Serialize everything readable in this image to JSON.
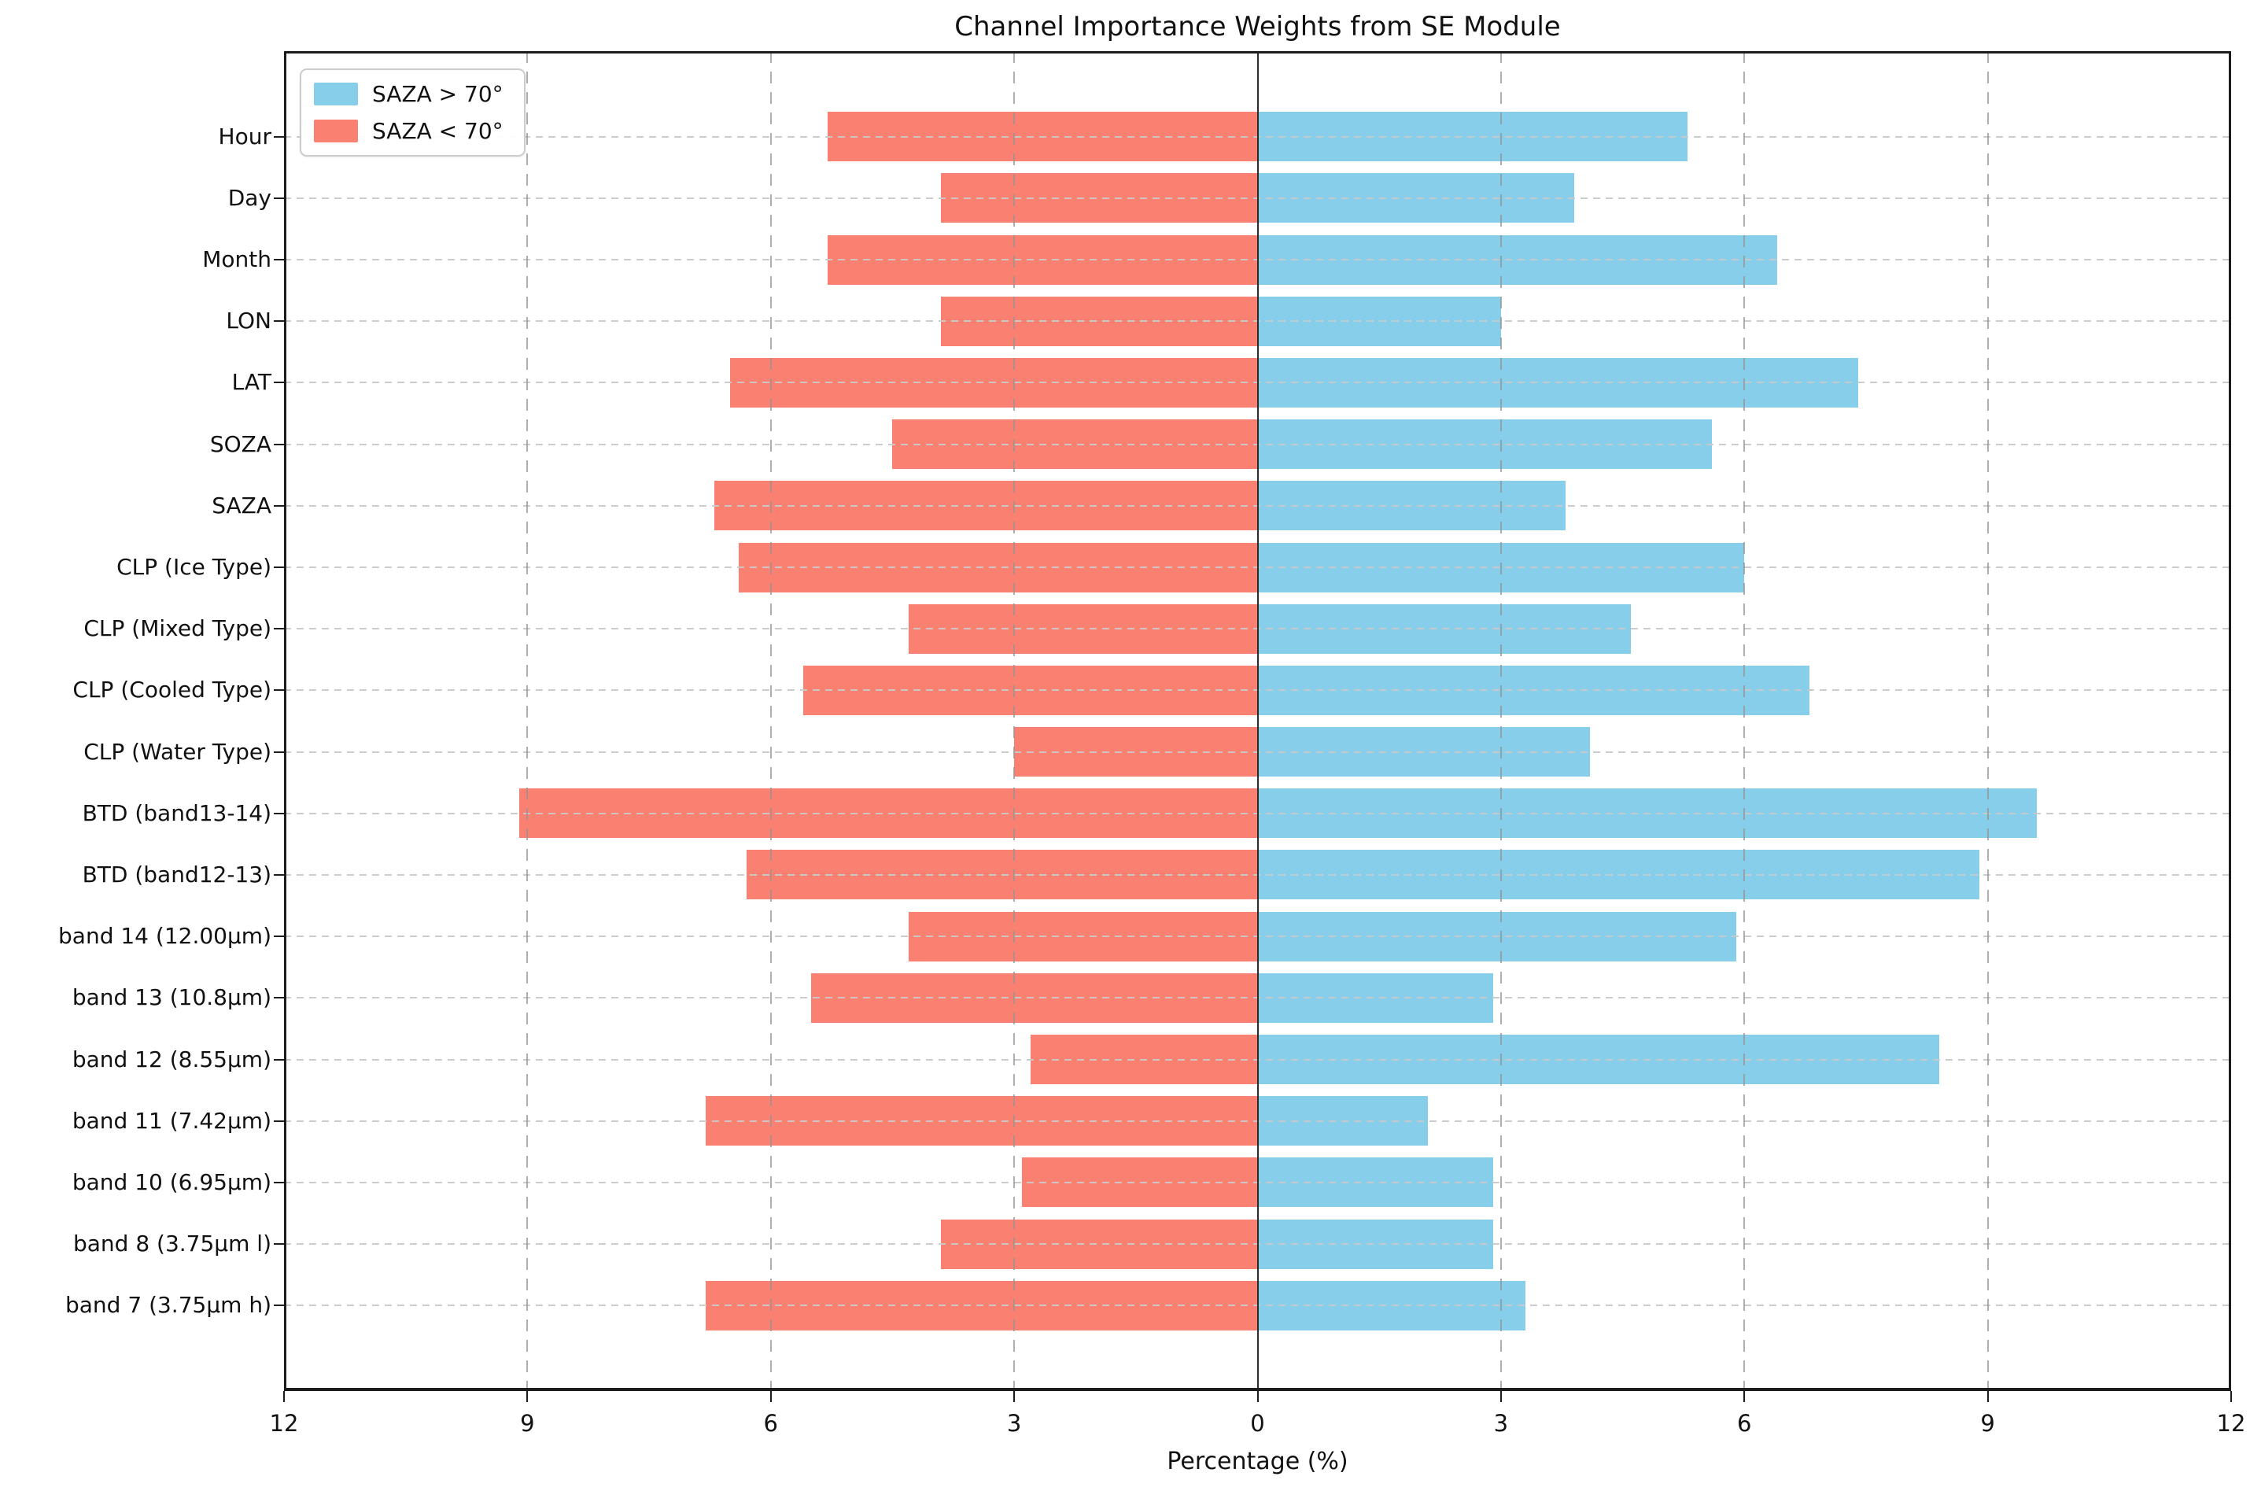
{
  "figure": {
    "title": "Channel Importance Weights from SE Module",
    "xlabel": "Percentage (%)"
  },
  "chart_data": {
    "type": "bar",
    "subtype": "diverging-horizontal",
    "title": "Channel Importance Weights from SE Module",
    "xlabel": "Percentage (%)",
    "ylabel": "",
    "xlim": [
      -12,
      12
    ],
    "xtick_values": [
      -12,
      -9,
      -6,
      -3,
      0,
      3,
      6,
      9,
      12
    ],
    "xtick_labels": [
      "12",
      "9",
      "6",
      "3",
      "0",
      "3",
      "6",
      "9",
      "12"
    ],
    "grid": true,
    "legend_position": "upper-left",
    "categories": [
      "Hour",
      "Day",
      "Month",
      "LON",
      "LAT",
      "SOZA",
      "SAZA",
      "CLP (Ice Type)",
      "CLP (Mixed Type)",
      "CLP (Cooled Type)",
      "CLP (Water Type)",
      "BTD (band13-14)",
      "BTD (band12-13)",
      "band 14 (12.00μm)",
      "band 13 (10.8μm)",
      "band 12 (8.55μm)",
      "band 11 (7.42μm)",
      "band 10 (6.95μm)",
      "band 8 (3.75μm l)",
      "band 7 (3.75μm h)"
    ],
    "series": [
      {
        "name": "SAZA > 70°",
        "side": "right",
        "color": "#87CEEB",
        "values": [
          5.3,
          3.9,
          6.4,
          3.0,
          7.4,
          5.6,
          3.8,
          6.0,
          4.6,
          6.8,
          4.1,
          9.6,
          8.9,
          5.9,
          2.9,
          8.4,
          2.1,
          2.9,
          2.9,
          3.3
        ]
      },
      {
        "name": "SAZA < 70°",
        "side": "left",
        "color": "#FA8072",
        "values": [
          5.3,
          3.9,
          5.3,
          3.9,
          6.5,
          4.5,
          6.7,
          6.4,
          4.3,
          5.6,
          3.0,
          9.1,
          6.3,
          4.3,
          5.5,
          2.8,
          6.8,
          2.9,
          3.9,
          6.8
        ]
      }
    ]
  },
  "colors": {
    "axis": "#1c1c1c",
    "grid_vertical": "#949494",
    "grid_horizontal": "#c9c9c9",
    "background": "#ffffff"
  }
}
